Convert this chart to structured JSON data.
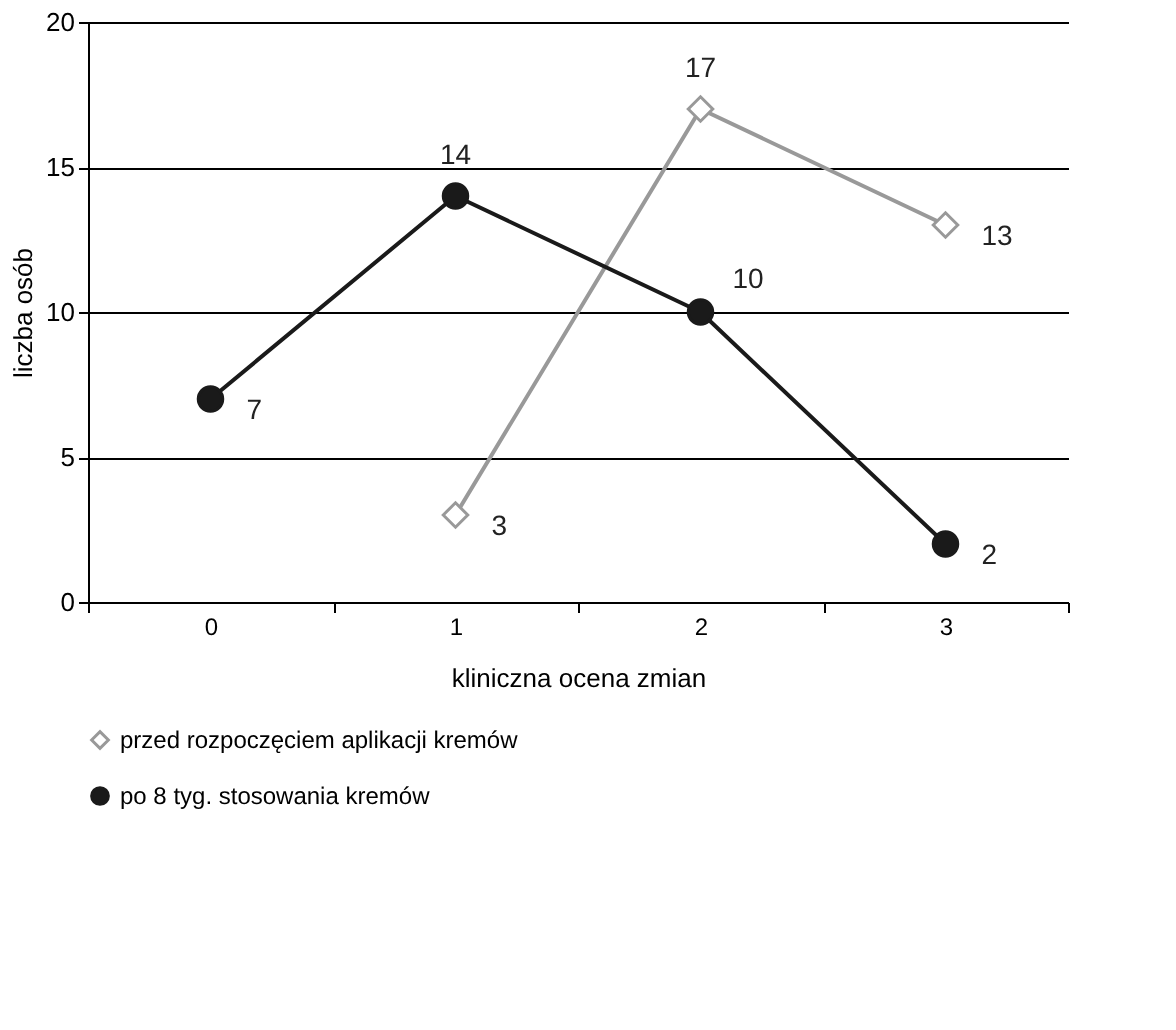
{
  "chart_data": {
    "type": "line",
    "xlabel": "kliniczna ocena zmian",
    "ylabel": "liczba osób",
    "categories": [
      "0",
      "1",
      "2",
      "3"
    ],
    "series": [
      {
        "name": "przed rozpoczęciem aplikacji kremów",
        "color": "#999999",
        "marker": "diamond",
        "values": [
          null,
          3,
          17,
          13
        ]
      },
      {
        "name": "po 8 tyg. stosowania kremów",
        "color": "#1a1a1a",
        "marker": "circle",
        "values": [
          7,
          14,
          10,
          2
        ]
      }
    ],
    "ylim": [
      0,
      20
    ],
    "yticks": [
      0,
      5,
      10,
      15,
      20
    ],
    "grid": "y",
    "legend": "bottom",
    "data_labels": true,
    "line_style": "solid"
  }
}
